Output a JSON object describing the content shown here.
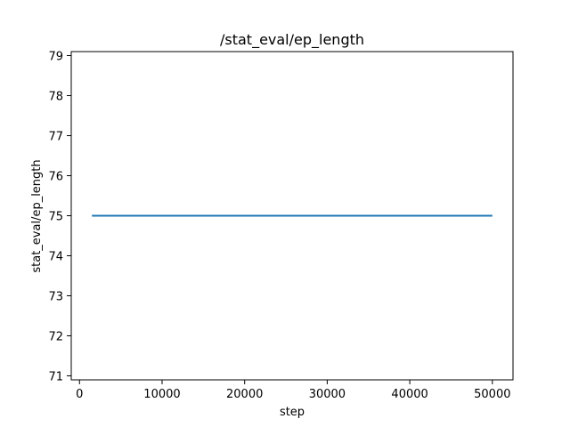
{
  "chart_data": {
    "type": "line",
    "title": "/stat_eval/ep_length",
    "xlabel": "step",
    "ylabel": "stat_eval/ep_length",
    "xlim": [
      -1000,
      52500
    ],
    "ylim": [
      70.9,
      79.1
    ],
    "xticks": [
      0,
      10000,
      20000,
      30000,
      40000,
      50000
    ],
    "xtick_labels": [
      "0",
      "10000",
      "20000",
      "30000",
      "40000",
      "50000"
    ],
    "yticks": [
      71,
      72,
      73,
      74,
      75,
      76,
      77,
      78,
      79
    ],
    "ytick_labels": [
      "71",
      "72",
      "73",
      "74",
      "75",
      "76",
      "77",
      "78",
      "79"
    ],
    "grid": false,
    "series": [
      {
        "color": "#1f77b4",
        "x": [
          1500,
          50000
        ],
        "y": [
          75,
          75
        ]
      }
    ]
  }
}
